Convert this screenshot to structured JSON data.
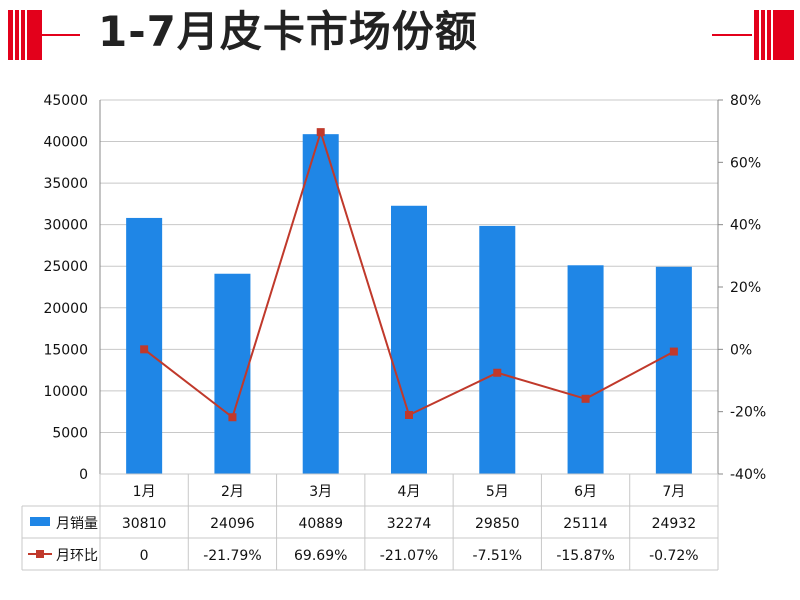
{
  "header": {
    "title": "1-7月皮卡市场份额"
  },
  "colors": {
    "bar": "#1f86e6",
    "line": "#c0392b",
    "accent": "#e3001b",
    "grid": "#c8c8c8"
  },
  "chart_data": {
    "type": "bar",
    "title": "1-7月皮卡市场份额",
    "categories": [
      "1月",
      "2月",
      "3月",
      "4月",
      "5月",
      "6月",
      "7月"
    ],
    "series": [
      {
        "name": "月销量",
        "type": "bar",
        "axis": "left",
        "values": [
          30810,
          24096,
          40889,
          32274,
          29850,
          25114,
          24932
        ],
        "labels": [
          "30810",
          "24096",
          "40889",
          "32274",
          "29850",
          "25114",
          "24932"
        ]
      },
      {
        "name": "月环比",
        "type": "line",
        "axis": "right",
        "values": [
          0,
          -21.79,
          69.69,
          -21.07,
          -7.51,
          -15.87,
          -0.72
        ],
        "labels": [
          "0",
          "-21.79%",
          "69.69%",
          "-21.07%",
          "-7.51%",
          "-15.87%",
          "-0.72%"
        ]
      }
    ],
    "y_left": {
      "min": 0,
      "max": 45000,
      "step": 5000,
      "ticks": [
        "0",
        "5000",
        "10000",
        "15000",
        "20000",
        "25000",
        "30000",
        "35000",
        "40000",
        "45000"
      ]
    },
    "y_right": {
      "min": -40,
      "max": 80,
      "step": 20,
      "ticks": [
        "-40%",
        "-20%",
        "0%",
        "20%",
        "40%",
        "60%",
        "80%"
      ]
    },
    "grid": true,
    "data_table": true
  }
}
